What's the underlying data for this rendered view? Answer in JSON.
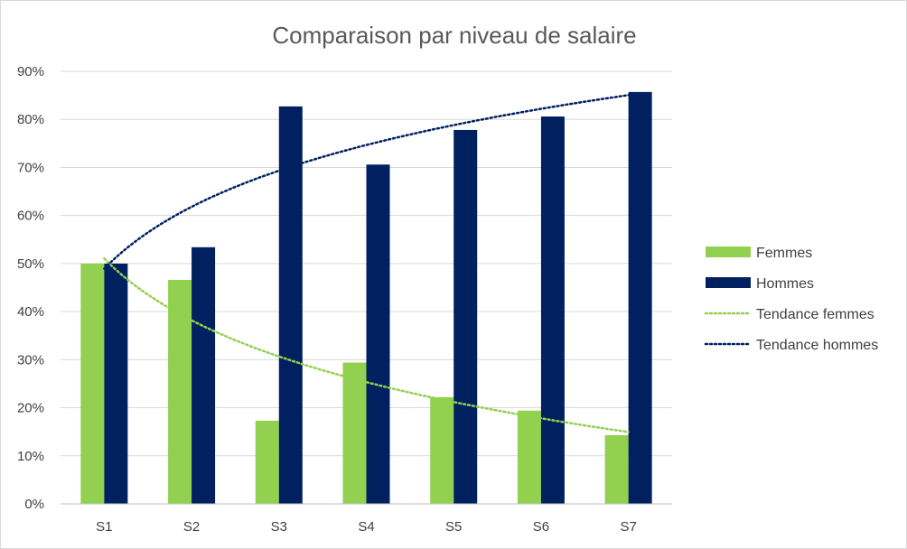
{
  "chart_data": {
    "type": "bar",
    "title": "Comparaison par niveau de salaire",
    "categories": [
      "S1",
      "S2",
      "S3",
      "S4",
      "S5",
      "S6",
      "S7"
    ],
    "y_ticks": [
      "0%",
      "10%",
      "20%",
      "30%",
      "40%",
      "50%",
      "60%",
      "70%",
      "80%",
      "90%"
    ],
    "ylim": [
      0,
      90
    ],
    "grid": true,
    "legend_position": "right",
    "series": [
      {
        "name": "Femmes",
        "values": [
          50.0,
          46.6,
          17.3,
          29.4,
          22.2,
          19.4,
          14.3
        ],
        "color": "#92d050"
      },
      {
        "name": "Hommes",
        "values": [
          50.0,
          53.4,
          82.7,
          70.6,
          77.8,
          80.6,
          85.7
        ],
        "color": "#002060"
      }
    ],
    "trendlines": [
      {
        "name": "Tendance femmes",
        "type": "logarithmic",
        "series": "Femmes",
        "color": "#92d050"
      },
      {
        "name": "Tendance hommes",
        "type": "logarithmic",
        "series": "Hommes",
        "color": "#002060"
      }
    ]
  }
}
